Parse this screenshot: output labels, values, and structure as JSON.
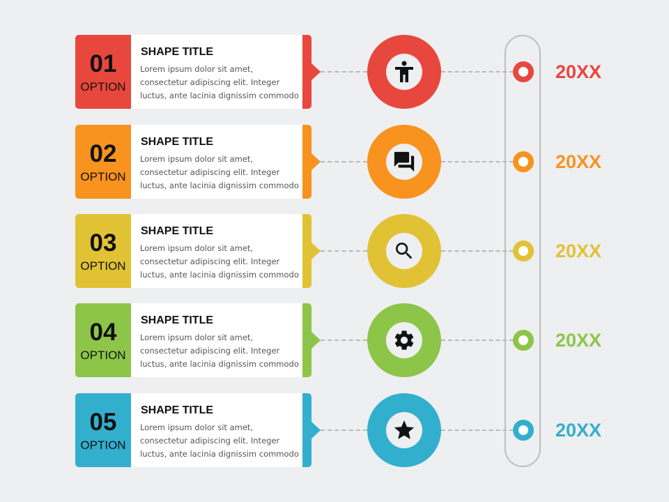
{
  "items": [
    {
      "number": "01",
      "option": "OPTION",
      "title": "SHAPE TITLE",
      "text": "Lorem ipsum dolor sit amet, consectetur adipiscing elit. Integer luctus, ante lacinia dignissim commodo",
      "icon": "accessibility-icon",
      "year": "20XX",
      "color": "#E8473E"
    },
    {
      "number": "02",
      "option": "OPTION",
      "title": "SHAPE TITLE",
      "text": "Lorem ipsum dolor sit amet, consectetur adipiscing elit. Integer luctus, ante lacinia dignissim commodo",
      "icon": "chat-bubbles-icon",
      "year": "20XX",
      "color": "#F7931E"
    },
    {
      "number": "03",
      "option": "OPTION",
      "title": "SHAPE TITLE",
      "text": "Lorem ipsum dolor sit amet, consectetur adipiscing elit. Integer luctus, ante lacinia dignissim commodo",
      "icon": "search-icon",
      "year": "20XX",
      "color": "#E1C234"
    },
    {
      "number": "04",
      "option": "OPTION",
      "title": "SHAPE TITLE",
      "text": "Lorem ipsum dolor sit amet, consectetur adipiscing elit. Integer luctus, ante lacinia dignissim commodo",
      "icon": "gear-icon",
      "year": "20XX",
      "color": "#8DC548"
    },
    {
      "number": "05",
      "option": "OPTION",
      "title": "SHAPE TITLE",
      "text": "Lorem ipsum dolor sit amet, consectetur adipiscing elit. Integer luctus, ante lacinia dignissim commodo",
      "icon": "star-icon",
      "year": "20XX",
      "color": "#33AFCE"
    }
  ]
}
